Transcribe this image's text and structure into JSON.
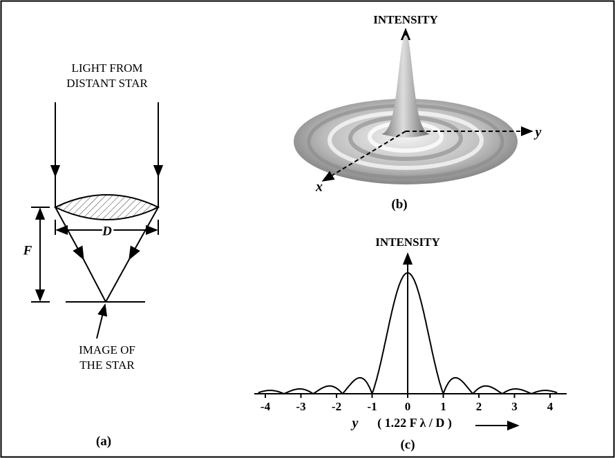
{
  "panel_a": {
    "label": "(a)",
    "source": [
      "LIGHT FROM",
      "DISTANT STAR"
    ],
    "aperture": "D",
    "focal_length": "F",
    "image": [
      "IMAGE OF",
      "THE STAR"
    ]
  },
  "panel_b": {
    "label": "(b)",
    "z_axis": "INTENSITY",
    "x_axis": "x",
    "y_axis": "y"
  },
  "panel_c": {
    "label": "(c)",
    "y_axis": "INTENSITY",
    "x_axis_var": "y",
    "x_axis_unit": "( 1.22 F λ / D )",
    "xticks": [
      -4,
      -3,
      -2,
      -1,
      0,
      1,
      2,
      3,
      4
    ]
  }
}
